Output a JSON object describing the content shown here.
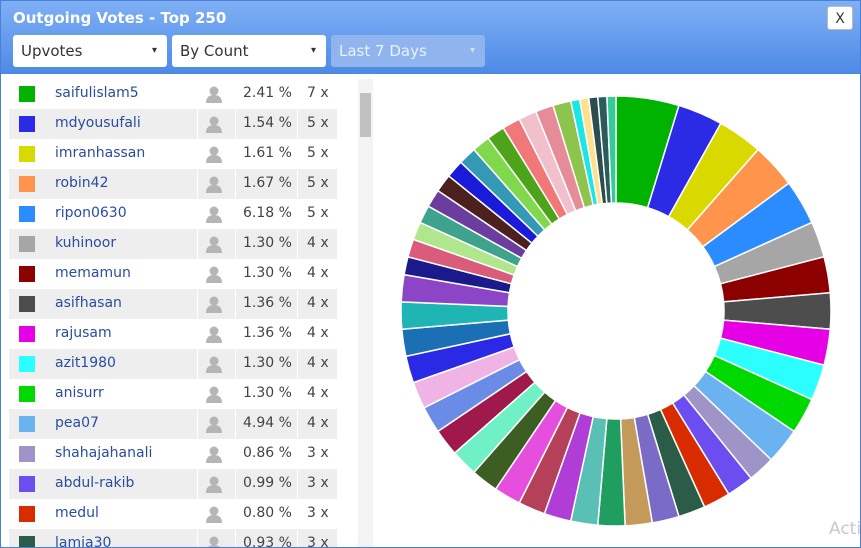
{
  "header": {
    "title": "Outgoing Votes - Top 250",
    "close": "X",
    "dropdowns": [
      "Upvotes",
      "By Count",
      "Last 7 Days"
    ]
  },
  "rows": [
    {
      "name": "saifulislam5",
      "percent": "2.41 %",
      "count": "7 x"
    },
    {
      "name": "mdyousufali",
      "percent": "1.54 %",
      "count": "5 x"
    },
    {
      "name": "imranhassan",
      "percent": "1.61 %",
      "count": "5 x"
    },
    {
      "name": "robin42",
      "percent": "1.67 %",
      "count": "5 x"
    },
    {
      "name": "ripon0630",
      "percent": "6.18 %",
      "count": "5 x"
    },
    {
      "name": "kuhinoor",
      "percent": "1.30 %",
      "count": "4 x"
    },
    {
      "name": "memamun",
      "percent": "1.30 %",
      "count": "4 x"
    },
    {
      "name": "asifhasan",
      "percent": "1.36 %",
      "count": "4 x"
    },
    {
      "name": "rajusam",
      "percent": "1.36 %",
      "count": "4 x"
    },
    {
      "name": "azit1980",
      "percent": "1.30 %",
      "count": "4 x"
    },
    {
      "name": "anisurr",
      "percent": "1.30 %",
      "count": "4 x"
    },
    {
      "name": "pea07",
      "percent": "4.94 %",
      "count": "4 x"
    },
    {
      "name": "shahajahanali",
      "percent": "0.86 %",
      "count": "3 x"
    },
    {
      "name": "abdul-rakib",
      "percent": "0.99 %",
      "count": "3 x"
    },
    {
      "name": "medul",
      "percent": "0.80 %",
      "count": "3 x"
    },
    {
      "name": "lamia30",
      "percent": "0.93 %",
      "count": "3 x"
    }
  ],
  "donut": [
    {
      "color": "#00b300",
      "value": 7
    },
    {
      "color": "#2b2be6",
      "value": 5
    },
    {
      "color": "#d9d900",
      "value": 5
    },
    {
      "color": "#ff944d",
      "value": 5
    },
    {
      "color": "#2b8cff",
      "value": 5
    },
    {
      "color": "#a6a6a6",
      "value": 4
    },
    {
      "color": "#8c0000",
      "value": 4
    },
    {
      "color": "#4d4d4d",
      "value": 4
    },
    {
      "color": "#e600e6",
      "value": 4
    },
    {
      "color": "#2bffff",
      "value": 4
    },
    {
      "color": "#00d900",
      "value": 4
    },
    {
      "color": "#6bb3f0",
      "value": 4
    },
    {
      "color": "#9e94c7",
      "value": 3
    },
    {
      "color": "#6b4df0",
      "value": 3
    },
    {
      "color": "#d92b00",
      "value": 3
    },
    {
      "color": "#2b5c47",
      "value": 3
    },
    {
      "color": "#7a6bc7",
      "value": 3
    },
    {
      "color": "#c49a5a",
      "value": 3
    },
    {
      "color": "#1f9e5f",
      "value": 3
    },
    {
      "color": "#5abfb5",
      "value": 3
    },
    {
      "color": "#b03dd6",
      "value": 3
    },
    {
      "color": "#b5405a",
      "value": 3
    },
    {
      "color": "#e64fdd",
      "value": 3
    },
    {
      "color": "#3d5e22",
      "value": 3
    },
    {
      "color": "#6ff0c5",
      "value": 3
    },
    {
      "color": "#a0194d",
      "value": 3
    },
    {
      "color": "#6b8ce6",
      "value": 3
    },
    {
      "color": "#f0b3e6",
      "value": 3
    },
    {
      "color": "#2a2ae6",
      "value": 3
    },
    {
      "color": "#1a6fb5",
      "value": 3
    },
    {
      "color": "#1fb5b5",
      "value": 3
    },
    {
      "color": "#8c45c7",
      "value": 3
    },
    {
      "color": "#1a1a8c",
      "value": 2
    },
    {
      "color": "#d95c7a",
      "value": 2
    },
    {
      "color": "#b0e68c",
      "value": 2
    },
    {
      "color": "#3da38c",
      "value": 2
    },
    {
      "color": "#6b3d9e",
      "value": 2
    },
    {
      "color": "#4d2020",
      "value": 2
    },
    {
      "color": "#1a1ad9",
      "value": 2
    },
    {
      "color": "#3399b5",
      "value": 2
    },
    {
      "color": "#80d94d",
      "value": 2
    },
    {
      "color": "#4da31a",
      "value": 2
    },
    {
      "color": "#f07878",
      "value": 2
    },
    {
      "color": "#f0c0cc",
      "value": 2
    },
    {
      "color": "#e68c99",
      "value": 2
    },
    {
      "color": "#8cc44d",
      "value": 2
    },
    {
      "color": "#1ae6e6",
      "value": 1
    },
    {
      "color": "#ffe08c",
      "value": 1
    },
    {
      "color": "#2b4d4d",
      "value": 1
    },
    {
      "color": "#2b5c5c",
      "value": 1
    },
    {
      "color": "#33cc99",
      "value": 1
    }
  ],
  "watermark": "Acti"
}
